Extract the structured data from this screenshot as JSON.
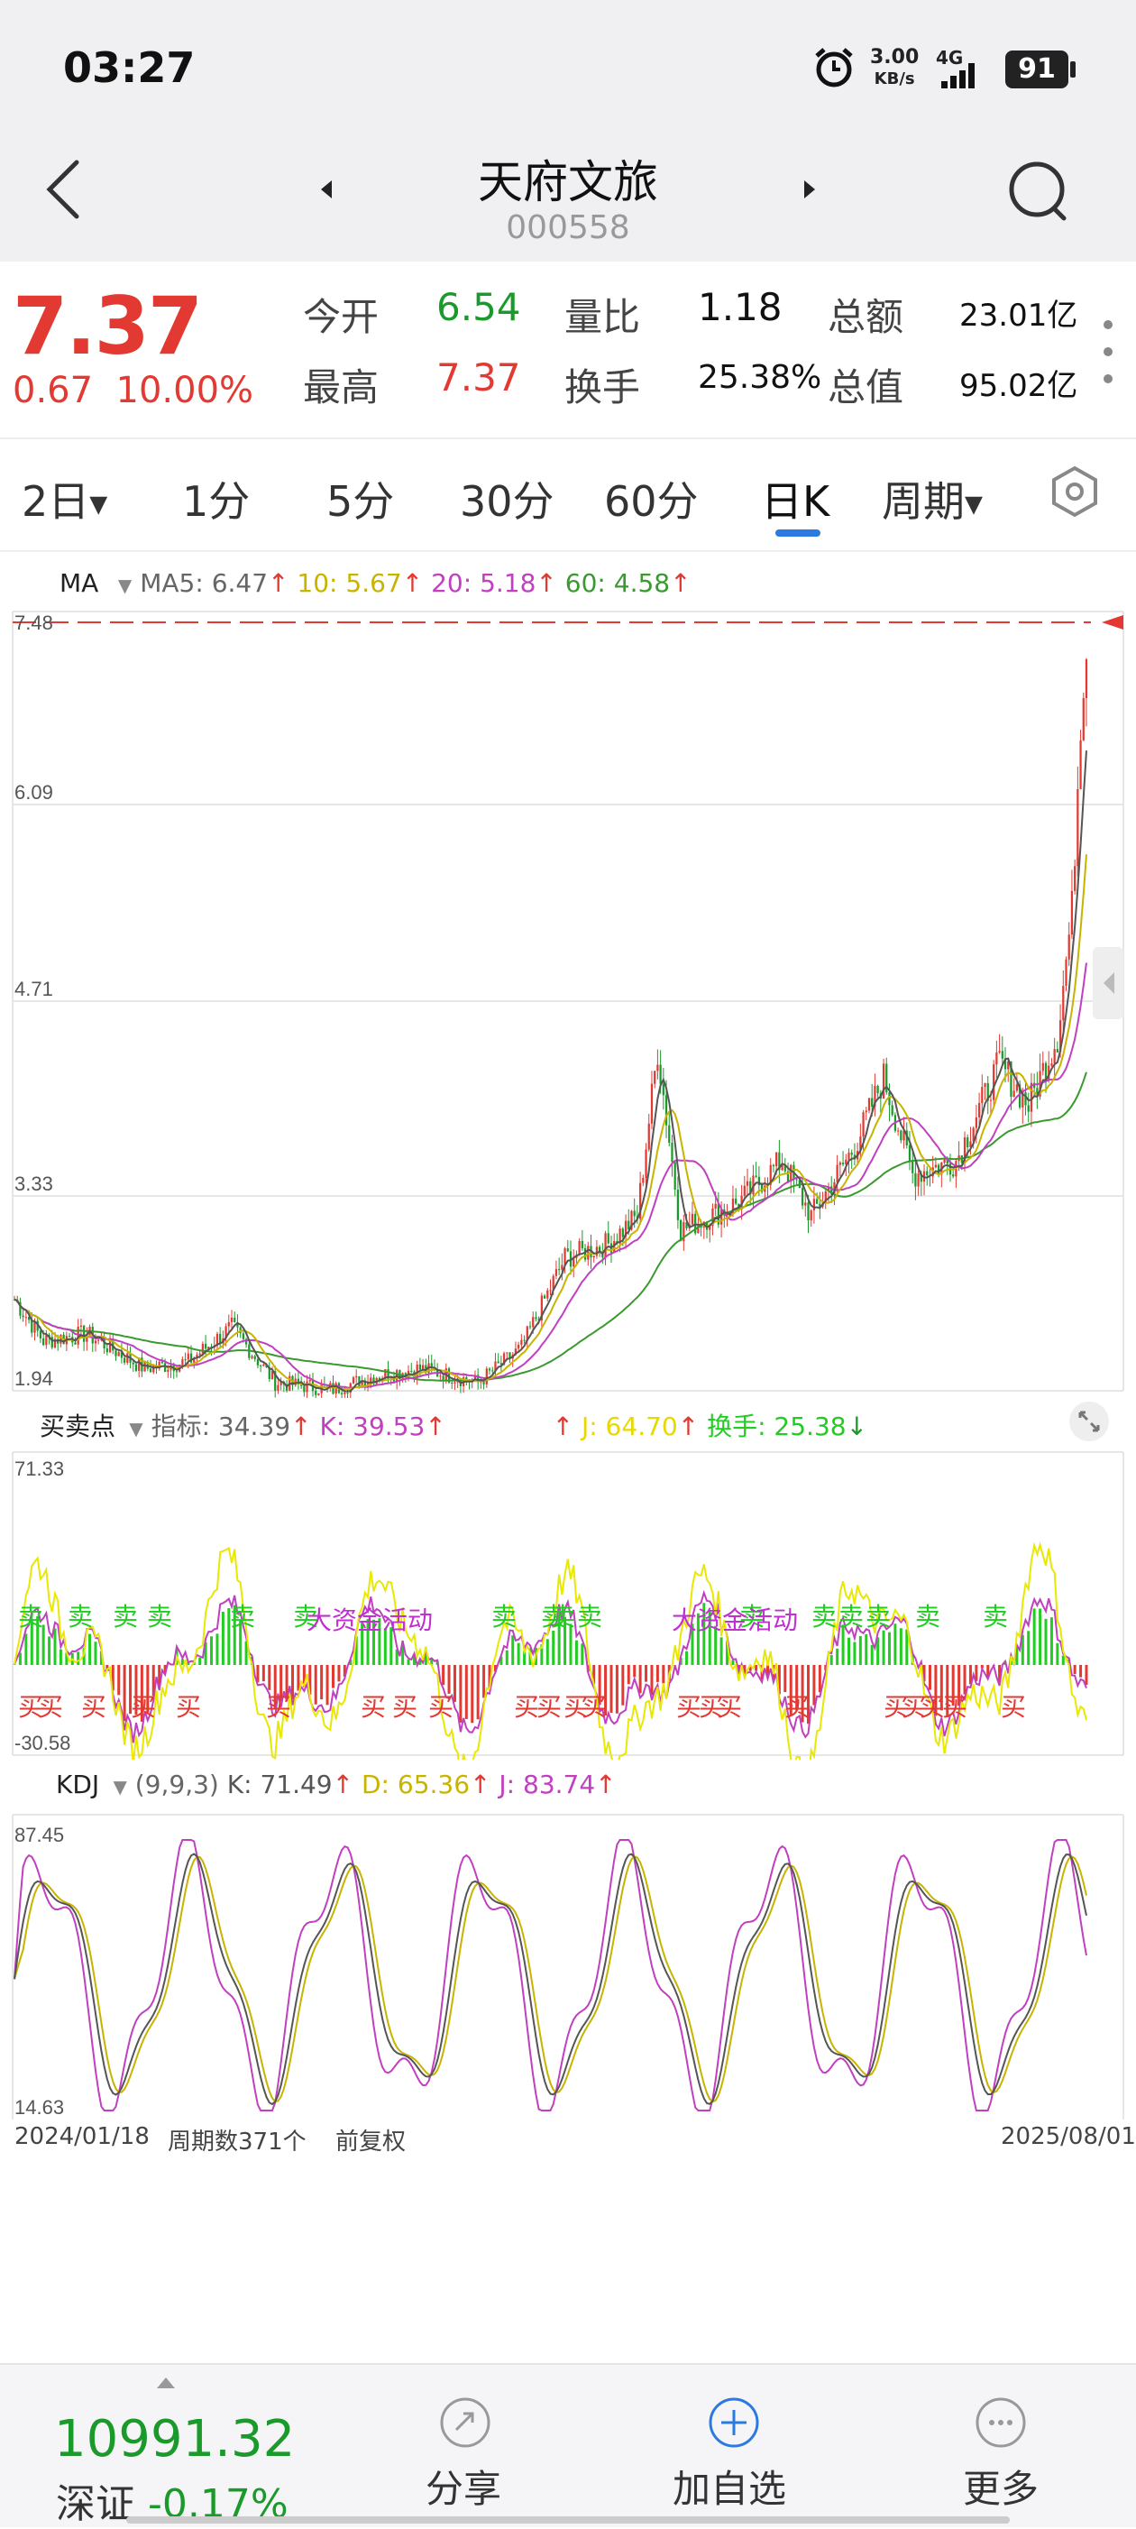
{
  "status": {
    "time": "03:27",
    "net_speed": "3.00",
    "net_unit": "KB/s",
    "signal": "4G",
    "battery": "91"
  },
  "header": {
    "name": "天府文旅",
    "code": "000558"
  },
  "quote": {
    "price": "7.37",
    "change": "0.67",
    "change_pct": "10.00%",
    "open_label": "今开",
    "open": "6.54",
    "high_label": "最高",
    "high": "7.37",
    "vol_ratio_label": "量比",
    "vol_ratio": "1.18",
    "turnover_label": "换手",
    "turnover": "25.38%",
    "amount_label": "总额",
    "amount": "23.01亿",
    "mcap_label": "总值",
    "mcap": "95.02亿"
  },
  "tabs": [
    "2日",
    "1分",
    "5分",
    "30分",
    "60分",
    "日K",
    "周期"
  ],
  "active_tab": "日K",
  "ma": {
    "label": "MA",
    "ma5": "MA5: 6.47",
    "ma10": "10: 5.67",
    "ma20": "20: 5.18",
    "ma60": "60: 4.58",
    "up_arrow": "↑",
    "y_ticks": [
      "7.48",
      "6.09",
      "4.71",
      "3.33",
      "1.94"
    ]
  },
  "indicator": {
    "label": "买卖点",
    "idx": "指标: 34.39",
    "k": "K: 39.53",
    "j": "J: 64.70",
    "hs": "换手: 25.38",
    "up_arrow": "↑",
    "down_arrow": "↓",
    "y_top": "71.33",
    "y_bottom": "-30.58",
    "sell": "卖",
    "buy": "买",
    "activity": "大资金活动"
  },
  "kdj": {
    "label": "KDJ",
    "params": "(9,9,3)",
    "k": "K: 71.49",
    "d": "D: 65.36",
    "j": "J: 83.74",
    "up_arrow": "↑",
    "y_top": "87.45",
    "y_bottom": "14.63"
  },
  "footer_axis": {
    "start": "2024/01/18",
    "count": "周期数371个",
    "adj": "前复权",
    "end": "2025/08/01"
  },
  "bottom": {
    "index_value": "10991.32",
    "index_name": "深证",
    "index_change": "-0.17%",
    "share": "分享",
    "add": "加自选",
    "more": "更多"
  },
  "colors": {
    "red": "#e23a32",
    "green": "#1a9a2a",
    "ma5": "#555555",
    "ma10": "#c8b400",
    "ma20": "#c040c0",
    "ma60": "#3a9a30",
    "accent_blue": "#2a7ae2"
  }
}
